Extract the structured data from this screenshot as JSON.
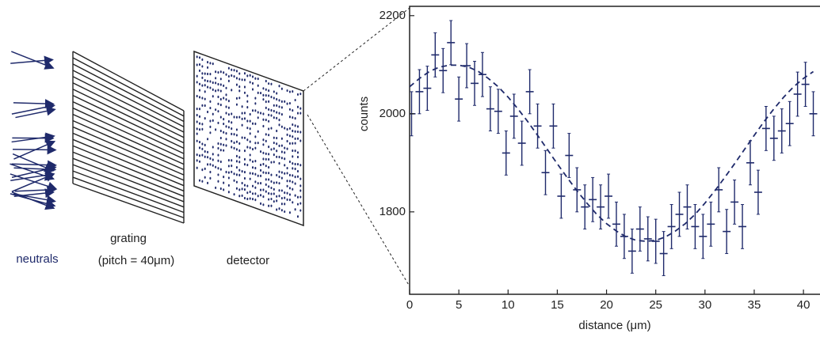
{
  "diagram": {
    "labels": [
      "neutrals",
      "grating",
      "(pitch = 40μm)",
      "detector"
    ]
  },
  "chart_data": {
    "type": "scatter",
    "x_label": "distance (μm)",
    "y_label": "counts",
    "xlim": [
      0,
      41.6
    ],
    "ylim": [
      1632,
      2219
    ],
    "xticks": [
      0,
      5,
      10,
      15,
      20,
      25,
      30,
      35,
      40
    ],
    "yticks": [
      1800,
      2000,
      2200
    ],
    "series": [
      {
        "color": "#1f2a6b",
        "yerr": 45,
        "xerr": 0.4,
        "x": [
          0.2,
          1.0,
          1.8,
          2.6,
          3.4,
          4.2,
          5.0,
          5.8,
          6.6,
          7.4,
          8.2,
          9.0,
          9.8,
          10.6,
          11.4,
          12.2,
          13.0,
          13.8,
          14.6,
          15.4,
          16.2,
          17.0,
          17.8,
          18.6,
          19.4,
          20.2,
          21.0,
          21.8,
          22.6,
          23.4,
          24.2,
          25.0,
          25.8,
          26.6,
          27.4,
          28.2,
          29.0,
          29.8,
          30.6,
          31.4,
          32.2,
          33.0,
          33.8,
          34.6,
          35.4,
          36.2,
          37.0,
          37.8,
          38.6,
          39.4,
          40.2,
          41.0
        ],
        "values": [
          2000,
          2045,
          2052,
          2120,
          2088,
          2145,
          2030,
          2098,
          2062,
          2080,
          2010,
          2005,
          1920,
          1995,
          1940,
          2045,
          1975,
          1880,
          1975,
          1832,
          1915,
          1845,
          1810,
          1825,
          1810,
          1832,
          1775,
          1750,
          1720,
          1765,
          1745,
          1740,
          1715,
          1770,
          1795,
          1810,
          1770,
          1750,
          1775,
          1845,
          1760,
          1820,
          1770,
          1900,
          1840,
          1970,
          1950,
          1965,
          1980,
          2040,
          2060,
          2000
        ]
      },
      {
        "type": "line",
        "color": "#1f2a6b",
        "dash": true,
        "x": [
          0,
          1,
          2,
          3,
          4,
          5,
          6,
          7,
          8,
          9,
          10,
          11,
          12,
          13,
          14,
          15,
          16,
          17,
          18,
          19,
          20,
          21,
          22,
          23,
          24,
          25,
          26,
          27,
          28,
          29,
          30,
          31,
          32,
          33,
          34,
          35,
          36,
          37,
          38,
          39,
          40,
          41
        ],
        "values": [
          2055,
          2072,
          2086,
          2095,
          2099,
          2099,
          2095,
          2086,
          2072,
          2055,
          2034,
          2010,
          1984,
          1956,
          1927,
          1898,
          1870,
          1843,
          1818,
          1795,
          1776,
          1761,
          1749,
          1742,
          1740,
          1742,
          1749,
          1761,
          1776,
          1795,
          1818,
          1843,
          1870,
          1898,
          1927,
          1956,
          1984,
          2010,
          2034,
          2055,
          2072,
          2086
        ]
      }
    ]
  }
}
